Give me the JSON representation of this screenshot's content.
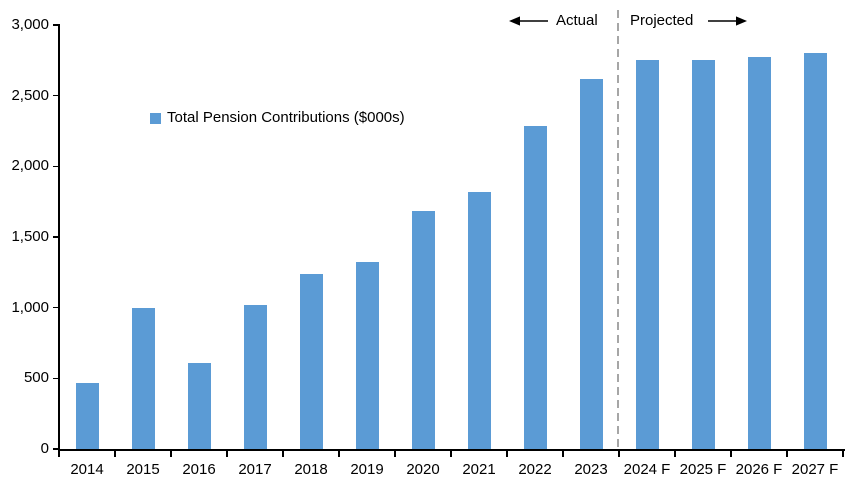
{
  "chart": {
    "colors": {
      "bar": "#5B9BD5",
      "axis": "#000000",
      "divider": "#A6A6A6",
      "text": "#000000"
    }
  },
  "chart_data": {
    "type": "bar",
    "title": "",
    "series_name": "Total Pension Contributions ($000s)",
    "categories": [
      "2014",
      "2015",
      "2016",
      "2017",
      "2018",
      "2019",
      "2020",
      "2021",
      "2022",
      "2023",
      "2024 F",
      "2025 F",
      "2026 F",
      "2027 F"
    ],
    "values": [
      470,
      995,
      610,
      1020,
      1235,
      1320,
      1685,
      1820,
      2285,
      2615,
      2755,
      2750,
      2775,
      2800
    ],
    "ylim": [
      0,
      3000
    ],
    "ytick_interval": 500,
    "ytick_labels": [
      "0",
      "500",
      "1,000",
      "1,500",
      "2,000",
      "2,500",
      "3,000"
    ],
    "grid": false,
    "legend_position": "inside-upper-left",
    "divider_after_category": "2023",
    "annotations": [
      {
        "text": "Actual",
        "side": "left-of-divider"
      },
      {
        "text": "Projected",
        "side": "right-of-divider"
      }
    ]
  }
}
